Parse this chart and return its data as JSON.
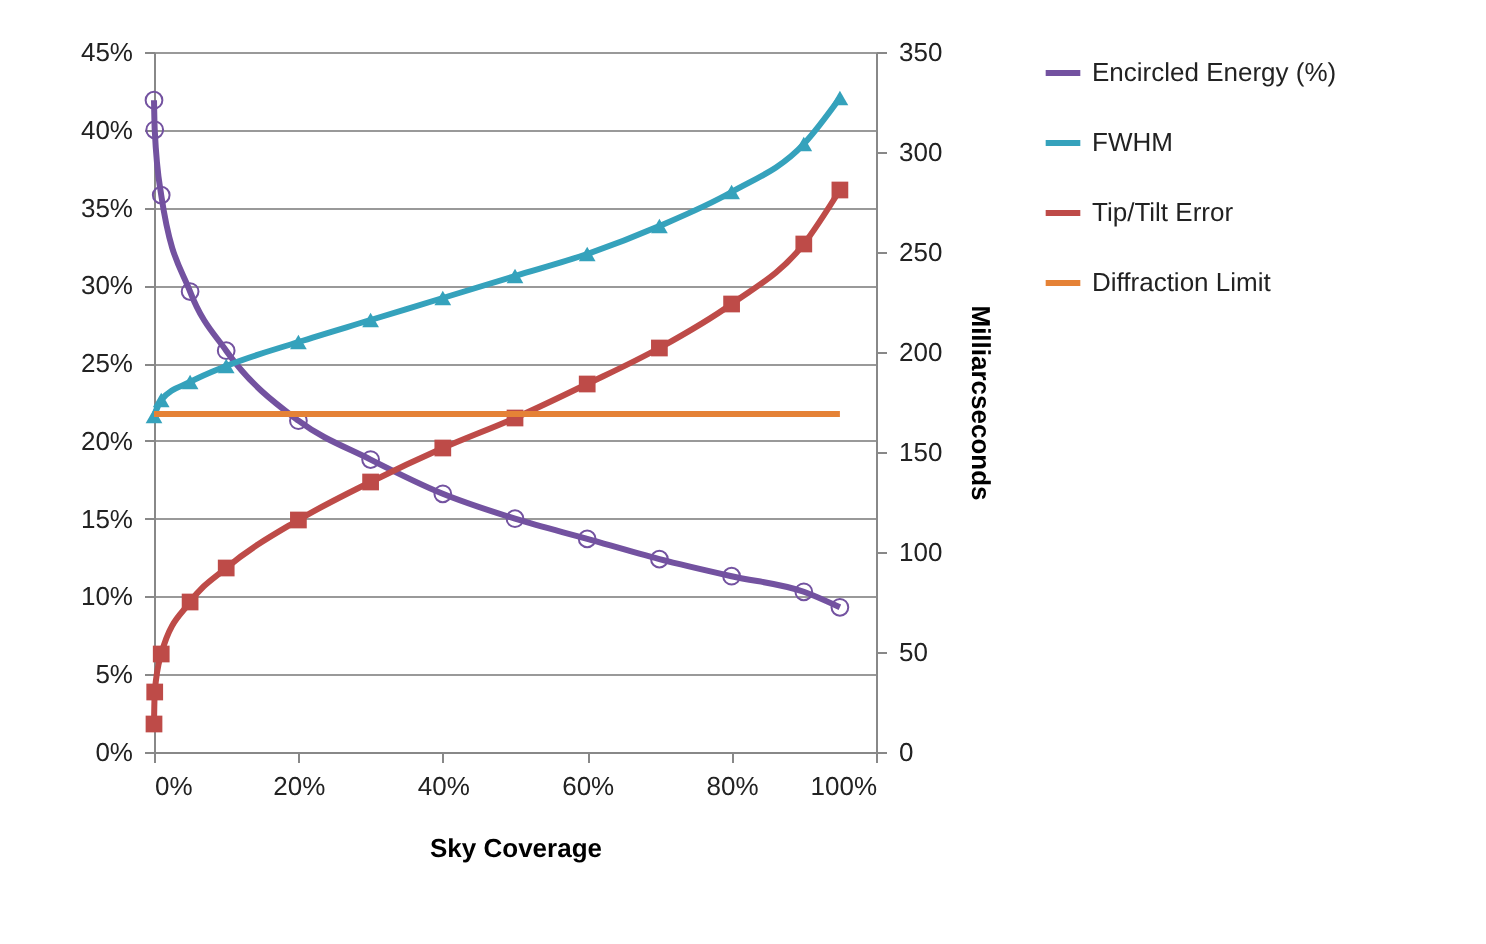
{
  "chart_data": {
    "type": "line",
    "xlabel": "Sky Coverage",
    "y2label": "Milliarcseconds",
    "xlim": [
      0,
      100
    ],
    "xticks": [
      {
        "value": 0,
        "label": "0%"
      },
      {
        "value": 20,
        "label": "20%"
      },
      {
        "value": 40,
        "label": "40%"
      },
      {
        "value": 60,
        "label": "60%"
      },
      {
        "value": 80,
        "label": "80%"
      },
      {
        "value": 100,
        "label": "100%"
      }
    ],
    "ylim": [
      0,
      45
    ],
    "yticks": [
      {
        "value": 0,
        "label": "0%"
      },
      {
        "value": 5,
        "label": "5%"
      },
      {
        "value": 10,
        "label": "10%"
      },
      {
        "value": 15,
        "label": "15%"
      },
      {
        "value": 20,
        "label": "20%"
      },
      {
        "value": 25,
        "label": "25%"
      },
      {
        "value": 30,
        "label": "30%"
      },
      {
        "value": 35,
        "label": "35%"
      },
      {
        "value": 40,
        "label": "40%"
      },
      {
        "value": 45,
        "label": "45%"
      }
    ],
    "y2lim": [
      0,
      350
    ],
    "y2ticks": [
      0,
      50,
      100,
      150,
      200,
      250,
      300,
      350
    ],
    "grid": "y",
    "legend": "right",
    "line_style": "solid",
    "series": [
      {
        "name": "Encircled Energy (%)",
        "color": "#7352a0",
        "marker": "circle",
        "x": [
          0,
          0.1,
          1,
          5,
          10,
          20,
          30,
          40,
          50,
          60,
          70,
          80,
          90,
          95
        ],
        "values": [
          41.9,
          40.0,
          35.8,
          29.6,
          25.8,
          21.3,
          18.8,
          16.6,
          15.0,
          13.7,
          12.4,
          11.3,
          10.3,
          9.3
        ]
      },
      {
        "name": "FWHM",
        "color": "#35a2bc",
        "marker": "triangle",
        "axis": "y2",
        "x": [
          0,
          1,
          5,
          10,
          20,
          30,
          40,
          50,
          60,
          70,
          80,
          90,
          95
        ],
        "values": [
          168,
          176,
          185,
          193,
          205,
          216,
          227,
          238,
          249,
          263,
          280,
          304,
          327
        ]
      },
      {
        "name": "Tip/Tilt Error",
        "color": "#be4b48",
        "marker": "square",
        "axis": "y2",
        "x": [
          0,
          0.1,
          1,
          5,
          10,
          20,
          30,
          40,
          50,
          60,
          70,
          80,
          90,
          95
        ],
        "values": [
          14,
          30,
          49,
          75,
          92,
          116,
          135,
          152,
          167,
          184,
          202,
          224,
          254,
          281
        ]
      },
      {
        "name": "Diffraction Limit",
        "color": "#e58236",
        "marker": "none",
        "axis": "y2",
        "x": [
          0,
          95
        ],
        "values": [
          169,
          169
        ]
      }
    ]
  }
}
